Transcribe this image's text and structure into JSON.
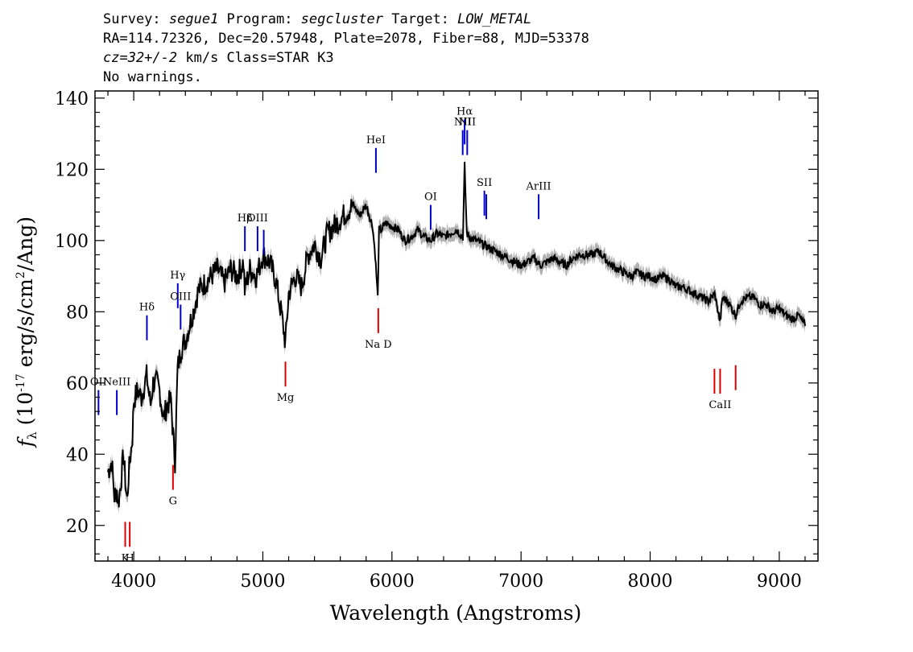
{
  "header": {
    "survey_label": "Survey: ",
    "survey": "segue1",
    "program_label": " Program: ",
    "program": "segcluster",
    "target_label": " Target: ",
    "target": "LOW_METAL",
    "line2": "RA=114.72326, Dec=20.57948, Plate=2078, Fiber=88, MJD=53378",
    "cz": "cz=32+/-2",
    "cz_rest": " km/s Class=STAR K3",
    "line4": "No warnings."
  },
  "chart_data": {
    "type": "line",
    "xlabel": "Wavelength (Angstroms)",
    "ylabel_main": "f",
    "ylabel_sub": "λ",
    "ylabel_rest": " (10",
    "ylabel_exp": "-17",
    "ylabel_rest2": " erg/s/cm",
    "ylabel_exp2": "2",
    "ylabel_end": "/Ang)",
    "xlim": [
      3700,
      9300
    ],
    "ylim": [
      10,
      142
    ],
    "x_ticks": [
      4000,
      5000,
      6000,
      7000,
      8000,
      9000
    ],
    "y_ticks": [
      20,
      40,
      60,
      80,
      100,
      120,
      140
    ],
    "series": [
      {
        "color": "#000000",
        "error_color": "#b0b0b0",
        "x": [
          3800,
          3830,
          3850,
          3870,
          3880,
          3900,
          3920,
          3940,
          3950,
          3960,
          3970,
          3990,
          4000,
          4030,
          4060,
          4100,
          4130,
          4150,
          4180,
          4200,
          4230,
          4260,
          4290,
          4300,
          4320,
          4340,
          4370,
          4400,
          4430,
          4460,
          4500,
          4550,
          4600,
          4650,
          4700,
          4750,
          4800,
          4850,
          4860,
          4900,
          4950,
          5000,
          5050,
          5100,
          5150,
          5175,
          5200,
          5250,
          5300,
          5350,
          5400,
          5450,
          5500,
          5550,
          5600,
          5650,
          5700,
          5750,
          5800,
          5850,
          5870,
          5890,
          5900,
          5920,
          5950,
          6000,
          6050,
          6100,
          6150,
          6200,
          6250,
          6300,
          6350,
          6400,
          6450,
          6500,
          6550,
          6563,
          6580,
          6600,
          6650,
          6700,
          6750,
          6800,
          6850,
          6900,
          6950,
          7000,
          7050,
          7100,
          7150,
          7200,
          7250,
          7300,
          7350,
          7400,
          7450,
          7500,
          7550,
          7600,
          7650,
          7700,
          7750,
          7800,
          7850,
          7900,
          7950,
          8000,
          8050,
          8100,
          8150,
          8200,
          8250,
          8300,
          8350,
          8400,
          8450,
          8500,
          8542,
          8560,
          8600,
          8662,
          8700,
          8750,
          8800,
          8850,
          8900,
          8950,
          9000,
          9050,
          9100,
          9150,
          9200
        ],
        "y": [
          35,
          38,
          28,
          30,
          26,
          32,
          40,
          30,
          27,
          34,
          38,
          45,
          55,
          58,
          56,
          62,
          54,
          60,
          60,
          58,
          50,
          54,
          55,
          48,
          38,
          64,
          70,
          72,
          76,
          80,
          86,
          88,
          90,
          92,
          88,
          92,
          90,
          94,
          86,
          92,
          90,
          96,
          94,
          89,
          78,
          71,
          85,
          90,
          87,
          96,
          99,
          95,
          102,
          104,
          106,
          108,
          110,
          107,
          110,
          104,
          96,
          84,
          103,
          103,
          105,
          104,
          103,
          100,
          101,
          103,
          101,
          100,
          102,
          101,
          102,
          103,
          101,
          121,
          102,
          101,
          100,
          99,
          98,
          97,
          96,
          95,
          94,
          93,
          94,
          95,
          93,
          94,
          95,
          94,
          93,
          95,
          96,
          96,
          96,
          97,
          95,
          93,
          92,
          91,
          90,
          91,
          90,
          90,
          89,
          90,
          89,
          87,
          87,
          86,
          85,
          84,
          83,
          85,
          77,
          84,
          83,
          79,
          83,
          84,
          84,
          82,
          82,
          80,
          81,
          79,
          78,
          79,
          76
        ]
      }
    ],
    "emission_lines": [
      {
        "name": "OII",
        "wave": 3727,
        "y0": 51,
        "y1": 58
      },
      {
        "name": "NeIII",
        "wave": 3869,
        "y0": 51,
        "y1": 58
      },
      {
        "name": "Hδ",
        "wave": 4102,
        "y0": 72,
        "y1": 79
      },
      {
        "name": "Hγ",
        "wave": 4341,
        "y0": 81,
        "y1": 88
      },
      {
        "name": "OIII",
        "wave": 4363,
        "y0": 75,
        "y1": 82
      },
      {
        "name": "Hβ",
        "wave": 4861,
        "y0": 97,
        "y1": 104
      },
      {
        "name": "OIII",
        "wave": 4959,
        "y0": 97,
        "y1": 104
      },
      {
        "name": "",
        "wave": 5007,
        "y0": 96,
        "y1": 103
      },
      {
        "name": "HeI",
        "wave": 5876,
        "y0": 119,
        "y1": 126
      },
      {
        "name": "OI",
        "wave": 6300,
        "y0": 103,
        "y1": 110
      },
      {
        "name": "NII",
        "wave": 6548,
        "y0": 124,
        "y1": 131
      },
      {
        "name": "Hα",
        "wave": 6563,
        "y0": 127,
        "y1": 134
      },
      {
        "name": "NII",
        "wave": 6583,
        "y0": 124,
        "y1": 131
      },
      {
        "name": "SII",
        "wave": 6716,
        "y0": 107,
        "y1": 114
      },
      {
        "name": "",
        "wave": 6731,
        "y0": 106,
        "y1": 113
      },
      {
        "name": "ArIII",
        "wave": 7136,
        "y0": 106,
        "y1": 113
      }
    ],
    "absorption_lines": [
      {
        "name": "K",
        "wave": 3934,
        "y0": 14,
        "y1": 21
      },
      {
        "name": "H",
        "wave": 3969,
        "y0": 14,
        "y1": 21
      },
      {
        "name": "G",
        "wave": 4304,
        "y0": 30,
        "y1": 37
      },
      {
        "name": "Mg",
        "wave": 5175,
        "y0": 59,
        "y1": 66
      },
      {
        "name": "Na D",
        "wave": 5894,
        "y0": 74,
        "y1": 81
      },
      {
        "name": "",
        "wave": 8498,
        "y0": 57,
        "y1": 64
      },
      {
        "name": "CaII",
        "wave": 8542,
        "y0": 57,
        "y1": 64
      },
      {
        "name": "",
        "wave": 8662,
        "y0": 58,
        "y1": 65
      }
    ],
    "colors": {
      "emission": "#0000cc",
      "absorption": "#dd0000",
      "spectrum": "#000000",
      "error": "#b0b0b0"
    }
  }
}
